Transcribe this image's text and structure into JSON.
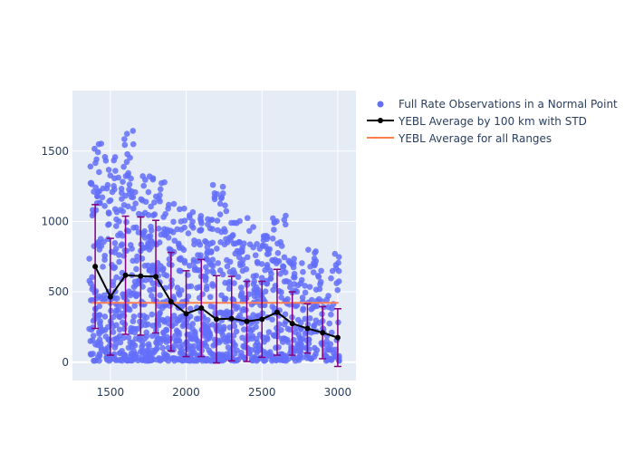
{
  "chart_data": {
    "type": "scatter",
    "xlim": [
      1250,
      3120
    ],
    "ylim": [
      -130,
      1930
    ],
    "x_ticks": [
      1500,
      2000,
      2500,
      3000
    ],
    "y_ticks": [
      0,
      500,
      1000,
      1500
    ],
    "grid": true,
    "legend_placement": "top-right",
    "colors": {
      "plot_background": "#E5ECF6",
      "scatter": "#636EFA",
      "average_line": "#000000",
      "error_bars": "#800080",
      "overall_average": "#FF7F50"
    },
    "legend": {
      "scatter": "Full Rate Observations in a Normal Point",
      "average": "YEBL Average by 100 km with STD",
      "overall": "YEBL Average for all Ranges"
    },
    "overall_average": 422,
    "average_by_100km": {
      "x": [
        1400,
        1500,
        1600,
        1700,
        1800,
        1900,
        2000,
        2100,
        2200,
        2300,
        2400,
        2500,
        2600,
        2700,
        2800,
        2900,
        3000
      ],
      "y": [
        680,
        465,
        618,
        612,
        608,
        430,
        345,
        385,
        305,
        310,
        290,
        305,
        355,
        275,
        240,
        210,
        175
      ],
      "std": [
        440,
        415,
        420,
        420,
        400,
        350,
        305,
        345,
        310,
        300,
        285,
        270,
        305,
        225,
        175,
        185,
        205
      ]
    },
    "observation_bands": [
      {
        "x": [
          1360,
          1460
        ],
        "y_max": 1560,
        "count": 90
      },
      {
        "x": [
          1460,
          1560
        ],
        "y_max": 1480,
        "count": 95
      },
      {
        "x": [
          1560,
          1660
        ],
        "y_max": 1650,
        "count": 110
      },
      {
        "x": [
          1660,
          1760
        ],
        "y_max": 1400,
        "count": 100
      },
      {
        "x": [
          1760,
          1860
        ],
        "y_max": 1370,
        "count": 100
      },
      {
        "x": [
          1860,
          1960
        ],
        "y_max": 1200,
        "count": 90
      },
      {
        "x": [
          1960,
          2060
        ],
        "y_max": 1100,
        "count": 90
      },
      {
        "x": [
          2060,
          2160
        ],
        "y_max": 1200,
        "count": 95
      },
      {
        "x": [
          2160,
          2260
        ],
        "y_max": 1270,
        "count": 90
      },
      {
        "x": [
          2260,
          2360
        ],
        "y_max": 1100,
        "count": 85
      },
      {
        "x": [
          2360,
          2460
        ],
        "y_max": 1030,
        "count": 80
      },
      {
        "x": [
          2460,
          2560
        ],
        "y_max": 900,
        "count": 80
      },
      {
        "x": [
          2560,
          2660
        ],
        "y_max": 1060,
        "count": 80
      },
      {
        "x": [
          2660,
          2760
        ],
        "y_max": 740,
        "count": 65
      },
      {
        "x": [
          2760,
          2860
        ],
        "y_max": 830,
        "count": 55
      },
      {
        "x": [
          2860,
          2960
        ],
        "y_max": 700,
        "count": 45
      },
      {
        "x": [
          2960,
          3010
        ],
        "y_max": 830,
        "count": 25
      }
    ]
  }
}
